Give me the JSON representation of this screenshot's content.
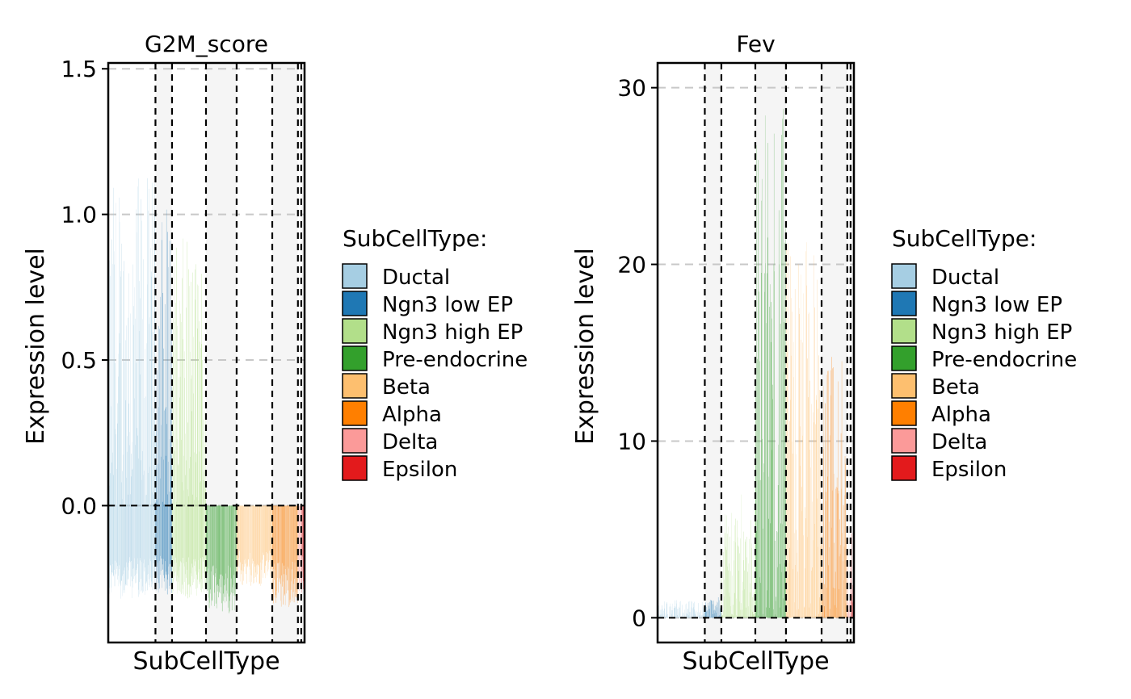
{
  "chart_data": [
    {
      "type": "bar",
      "title": "G2M_score",
      "xlabel": "SubCellType",
      "ylabel": "Expression level",
      "ylim": [
        -0.47,
        1.52
      ],
      "yticks": [
        "0.0",
        "0.5",
        "1.0",
        "1.5"
      ],
      "ytick_values": [
        0.0,
        0.5,
        1.0,
        1.5
      ],
      "grid": "horizontal dashed",
      "baseline": 0,
      "groups": [
        {
          "name": "Ductal",
          "width": 57,
          "max": 1.14,
          "min": -0.32,
          "base": 0.0
        },
        {
          "name": "Ngn3 low EP",
          "width": 20,
          "max": 1.08,
          "min": -0.31,
          "base": 0.0
        },
        {
          "name": "Ngn3 high EP",
          "width": 41,
          "max": 0.92,
          "min": -0.32,
          "base": 0.0
        },
        {
          "name": "Pre-endocrine",
          "width": 37,
          "max": 0.0,
          "min": -0.37,
          "base": 0.0
        },
        {
          "name": "Beta",
          "width": 43,
          "max": 0.0,
          "min": -0.28,
          "base": 0.0
        },
        {
          "name": "Alpha",
          "width": 31,
          "max": 0.0,
          "min": -0.35,
          "base": 0.0
        },
        {
          "name": "Delta",
          "width": 4,
          "max": 0.0,
          "min": -0.3,
          "base": 0.0
        },
        {
          "name": "Epsilon",
          "width": 4,
          "max": 0.0,
          "min": -0.3,
          "base": 0.0
        }
      ]
    },
    {
      "type": "bar",
      "title": "Fev",
      "xlabel": "SubCellType",
      "ylabel": "Expression level",
      "ylim": [
        -1.4,
        31.4
      ],
      "yticks": [
        "0",
        "10",
        "20",
        "30"
      ],
      "ytick_values": [
        0,
        10,
        20,
        30
      ],
      "grid": "horizontal dashed",
      "baseline": 0,
      "groups": [
        {
          "name": "Ductal",
          "width": 57,
          "max": 1.0,
          "min": 0,
          "base": 0.0
        },
        {
          "name": "Ngn3 low EP",
          "width": 20,
          "max": 1.2,
          "min": 0,
          "base": 0.0
        },
        {
          "name": "Ngn3 high EP",
          "width": 41,
          "max": 7.0,
          "min": 0,
          "base": 0.0
        },
        {
          "name": "Pre-endocrine",
          "width": 37,
          "max": 29.0,
          "min": 0,
          "base": 0.0
        },
        {
          "name": "Beta",
          "width": 43,
          "max": 22.0,
          "min": 0,
          "base": 0.0
        },
        {
          "name": "Alpha",
          "width": 31,
          "max": 15.0,
          "min": 0,
          "base": 0.0
        },
        {
          "name": "Delta",
          "width": 4,
          "max": 4.0,
          "min": 0,
          "base": 0.0
        },
        {
          "name": "Epsilon",
          "width": 4,
          "max": 6.0,
          "min": 0,
          "base": 0.0
        }
      ]
    }
  ],
  "legend": {
    "title": "SubCellType:",
    "items": [
      {
        "label": "Ductal",
        "color": "#A6CEE3"
      },
      {
        "label": "Ngn3 low EP",
        "color": "#1F78B4"
      },
      {
        "label": "Ngn3 high EP",
        "color": "#B2DF8A"
      },
      {
        "label": "Pre-endocrine",
        "color": "#33A02C"
      },
      {
        "label": "Beta",
        "color": "#FDBF6F"
      },
      {
        "label": "Alpha",
        "color": "#FF7F00"
      },
      {
        "label": "Delta",
        "color": "#FB9A99"
      },
      {
        "label": "Epsilon",
        "color": "#E31A1C"
      }
    ]
  }
}
